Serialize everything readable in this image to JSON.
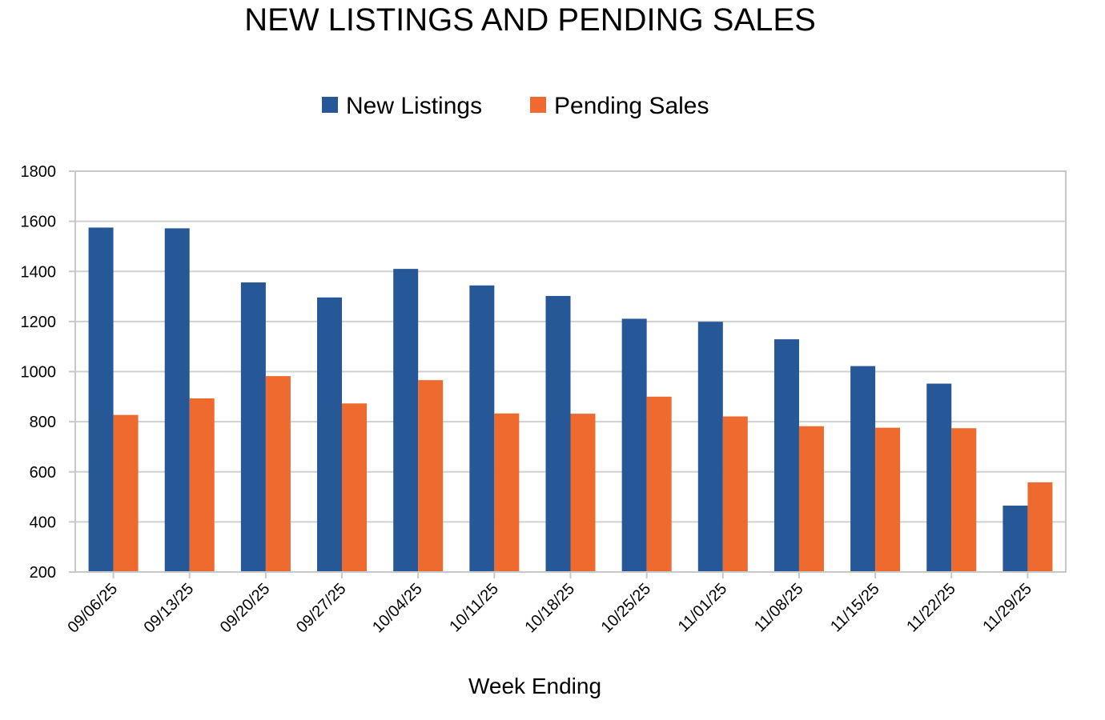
{
  "chart_data": {
    "type": "bar",
    "title": "NEW LISTINGS AND PENDING SALES",
    "xlabel": "Week Ending",
    "ylabel": "",
    "ylim": [
      200,
      1800
    ],
    "yticks": [
      200,
      400,
      600,
      800,
      1000,
      1200,
      1400,
      1600,
      1800
    ],
    "categories": [
      "09/06/25",
      "09/13/25",
      "09/20/25",
      "09/27/25",
      "10/04/25",
      "10/11/25",
      "10/18/25",
      "10/25/25",
      "11/01/25",
      "11/08/25",
      "11/15/25",
      "11/22/25",
      "11/29/25"
    ],
    "series": [
      {
        "name": "New Listings",
        "color": "#265796",
        "values": [
          1575,
          1572,
          1356,
          1296,
          1410,
          1344,
          1302,
          1211,
          1199,
          1129,
          1022,
          952,
          465
        ]
      },
      {
        "name": "Pending Sales",
        "color": "#ee6a2f",
        "values": [
          827,
          893,
          982,
          873,
          966,
          833,
          832,
          900,
          821,
          782,
          776,
          774,
          558
        ]
      }
    ],
    "grid": true,
    "legend_position": "top-center"
  }
}
